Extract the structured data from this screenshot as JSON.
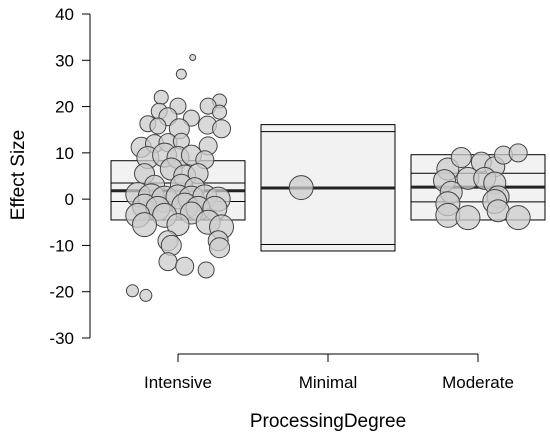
{
  "chart_data": {
    "type": "scatter",
    "subtype": "box-and-bubble",
    "title": "",
    "xlabel": "ProcessingDegree",
    "ylabel": "Effect Size",
    "ylim": [
      -30,
      40
    ],
    "yticks": [
      -30,
      -20,
      -10,
      0,
      10,
      20,
      30,
      40
    ],
    "categories": [
      "Intensive",
      "Minimal",
      "Moderate"
    ],
    "grid": false,
    "legend": "none",
    "colors": {
      "point_fill": "#cccccc",
      "point_stroke": "#444444",
      "box_fill": "#f2f2f2",
      "median": "#222222"
    },
    "boxes": [
      {
        "category": "Intensive",
        "min": -4.5,
        "q1": -0.5,
        "median": 1.8,
        "q3": 3.5,
        "max": 8.3
      },
      {
        "category": "Minimal",
        "min": -11.2,
        "q1": -9.8,
        "median": 2.4,
        "q3": 14.6,
        "max": 16.1
      },
      {
        "category": "Moderate",
        "min": -4.5,
        "q1": -0.6,
        "median": 2.6,
        "q3": 5.6,
        "max": 9.6
      }
    ],
    "points": [
      {
        "category": "Intensive",
        "jitter": 0.22,
        "y": 30.6,
        "size": 3
      },
      {
        "category": "Intensive",
        "jitter": 0.05,
        "y": 27.0,
        "size": 5
      },
      {
        "category": "Intensive",
        "jitter": -0.25,
        "y": 22.0,
        "size": 7
      },
      {
        "category": "Intensive",
        "jitter": 0.62,
        "y": 21.2,
        "size": 7
      },
      {
        "category": "Intensive",
        "jitter": 0.0,
        "y": 20.1,
        "size": 8
      },
      {
        "category": "Intensive",
        "jitter": 0.45,
        "y": 20.1,
        "size": 8
      },
      {
        "category": "Intensive",
        "jitter": -0.28,
        "y": 19.0,
        "size": 8
      },
      {
        "category": "Intensive",
        "jitter": 0.62,
        "y": 18.8,
        "size": 7
      },
      {
        "category": "Intensive",
        "jitter": -0.15,
        "y": 17.8,
        "size": 9
      },
      {
        "category": "Intensive",
        "jitter": 0.2,
        "y": 17.5,
        "size": 8
      },
      {
        "category": "Intensive",
        "jitter": -0.45,
        "y": 16.3,
        "size": 8
      },
      {
        "category": "Intensive",
        "jitter": -0.3,
        "y": 15.8,
        "size": 8
      },
      {
        "category": "Intensive",
        "jitter": 0.02,
        "y": 15.2,
        "size": 10
      },
      {
        "category": "Intensive",
        "jitter": 0.44,
        "y": 16.0,
        "size": 9
      },
      {
        "category": "Intensive",
        "jitter": 0.65,
        "y": 15.2,
        "size": 9
      },
      {
        "category": "Intensive",
        "jitter": -0.55,
        "y": 11.2,
        "size": 10
      },
      {
        "category": "Intensive",
        "jitter": -0.35,
        "y": 12.0,
        "size": 9
      },
      {
        "category": "Intensive",
        "jitter": -0.15,
        "y": 12.2,
        "size": 9
      },
      {
        "category": "Intensive",
        "jitter": 0.05,
        "y": 12.5,
        "size": 8
      },
      {
        "category": "Intensive",
        "jitter": 0.45,
        "y": 11.5,
        "size": 9
      },
      {
        "category": "Intensive",
        "jitter": -0.45,
        "y": 9.0,
        "size": 11
      },
      {
        "category": "Intensive",
        "jitter": -0.2,
        "y": 9.5,
        "size": 12
      },
      {
        "category": "Intensive",
        "jitter": 0.0,
        "y": 9.0,
        "size": 11
      },
      {
        "category": "Intensive",
        "jitter": 0.2,
        "y": 9.5,
        "size": 10
      },
      {
        "category": "Intensive",
        "jitter": 0.4,
        "y": 8.5,
        "size": 9
      },
      {
        "category": "Intensive",
        "jitter": -0.5,
        "y": 5.5,
        "size": 10
      },
      {
        "category": "Intensive",
        "jitter": -0.1,
        "y": 6.5,
        "size": 11
      },
      {
        "category": "Intensive",
        "jitter": 0.1,
        "y": 5.0,
        "size": 11
      },
      {
        "category": "Intensive",
        "jitter": 0.3,
        "y": 5.5,
        "size": 10
      },
      {
        "category": "Intensive",
        "jitter": -0.35,
        "y": 3.0,
        "size": 10
      },
      {
        "category": "Intensive",
        "jitter": 0.05,
        "y": 3.0,
        "size": 11
      },
      {
        "category": "Intensive",
        "jitter": 0.25,
        "y": 2.5,
        "size": 10
      },
      {
        "category": "Intensive",
        "jitter": -0.6,
        "y": 1.0,
        "size": 12
      },
      {
        "category": "Intensive",
        "jitter": -0.4,
        "y": 0.5,
        "size": 13
      },
      {
        "category": "Intensive",
        "jitter": -0.2,
        "y": 0.0,
        "size": 13
      },
      {
        "category": "Intensive",
        "jitter": 0.0,
        "y": 0.5,
        "size": 12
      },
      {
        "category": "Intensive",
        "jitter": 0.2,
        "y": 0.0,
        "size": 13
      },
      {
        "category": "Intensive",
        "jitter": 0.4,
        "y": 0.5,
        "size": 12
      },
      {
        "category": "Intensive",
        "jitter": 0.6,
        "y": 0.0,
        "size": 12
      },
      {
        "category": "Intensive",
        "jitter": -0.5,
        "y": -1.5,
        "size": 12
      },
      {
        "category": "Intensive",
        "jitter": -0.3,
        "y": -2.0,
        "size": 12
      },
      {
        "category": "Intensive",
        "jitter": 0.1,
        "y": -1.5,
        "size": 13
      },
      {
        "category": "Intensive",
        "jitter": 0.3,
        "y": -2.0,
        "size": 12
      },
      {
        "category": "Intensive",
        "jitter": 0.55,
        "y": -2.0,
        "size": 12
      },
      {
        "category": "Intensive",
        "jitter": -0.6,
        "y": -3.5,
        "size": 12
      },
      {
        "category": "Intensive",
        "jitter": -0.2,
        "y": -3.5,
        "size": 12
      },
      {
        "category": "Intensive",
        "jitter": 0.2,
        "y": -3.0,
        "size": 11
      },
      {
        "category": "Intensive",
        "jitter": 0.45,
        "y": -5.0,
        "size": 12
      },
      {
        "category": "Intensive",
        "jitter": -0.5,
        "y": -5.5,
        "size": 12
      },
      {
        "category": "Intensive",
        "jitter": 0.0,
        "y": -5.5,
        "size": 11
      },
      {
        "category": "Intensive",
        "jitter": 0.65,
        "y": -6.0,
        "size": 12
      },
      {
        "category": "Intensive",
        "jitter": -0.15,
        "y": -9.0,
        "size": 10
      },
      {
        "category": "Intensive",
        "jitter": -0.1,
        "y": -10.0,
        "size": 10
      },
      {
        "category": "Intensive",
        "jitter": 0.6,
        "y": -9.0,
        "size": 10
      },
      {
        "category": "Intensive",
        "jitter": 0.62,
        "y": -10.5,
        "size": 10
      },
      {
        "category": "Intensive",
        "jitter": -0.15,
        "y": -13.5,
        "size": 9
      },
      {
        "category": "Intensive",
        "jitter": 0.1,
        "y": -14.5,
        "size": 9
      },
      {
        "category": "Intensive",
        "jitter": 0.42,
        "y": -15.3,
        "size": 8
      },
      {
        "category": "Intensive",
        "jitter": -0.68,
        "y": -19.8,
        "size": 6
      },
      {
        "category": "Intensive",
        "jitter": -0.48,
        "y": -20.8,
        "size": 6
      },
      {
        "category": "Minimal",
        "jitter": -0.4,
        "y": 2.5,
        "size": 12
      },
      {
        "category": "Moderate",
        "jitter": -0.45,
        "y": 6.5,
        "size": 11
      },
      {
        "category": "Moderate",
        "jitter": -0.25,
        "y": 9.0,
        "size": 10
      },
      {
        "category": "Moderate",
        "jitter": 0.05,
        "y": 8.0,
        "size": 10
      },
      {
        "category": "Moderate",
        "jitter": 0.25,
        "y": 7.0,
        "size": 10
      },
      {
        "category": "Moderate",
        "jitter": 0.38,
        "y": 9.5,
        "size": 9
      },
      {
        "category": "Moderate",
        "jitter": 0.6,
        "y": 10.0,
        "size": 9
      },
      {
        "category": "Moderate",
        "jitter": -0.5,
        "y": 4.0,
        "size": 11
      },
      {
        "category": "Moderate",
        "jitter": -0.15,
        "y": 4.5,
        "size": 11
      },
      {
        "category": "Moderate",
        "jitter": 0.1,
        "y": 4.5,
        "size": 11
      },
      {
        "category": "Moderate",
        "jitter": 0.25,
        "y": 3.5,
        "size": 11
      },
      {
        "category": "Moderate",
        "jitter": -0.4,
        "y": 1.5,
        "size": 11
      },
      {
        "category": "Moderate",
        "jitter": 0.3,
        "y": 0.5,
        "size": 11
      },
      {
        "category": "Moderate",
        "jitter": -0.45,
        "y": -1.0,
        "size": 12
      },
      {
        "category": "Moderate",
        "jitter": 0.25,
        "y": -0.5,
        "size": 12
      },
      {
        "category": "Moderate",
        "jitter": -0.45,
        "y": -3.5,
        "size": 12
      },
      {
        "category": "Moderate",
        "jitter": -0.15,
        "y": -4.0,
        "size": 12
      },
      {
        "category": "Moderate",
        "jitter": 0.3,
        "y": -2.5,
        "size": 11
      },
      {
        "category": "Moderate",
        "jitter": 0.6,
        "y": -4.0,
        "size": 12
      }
    ]
  }
}
